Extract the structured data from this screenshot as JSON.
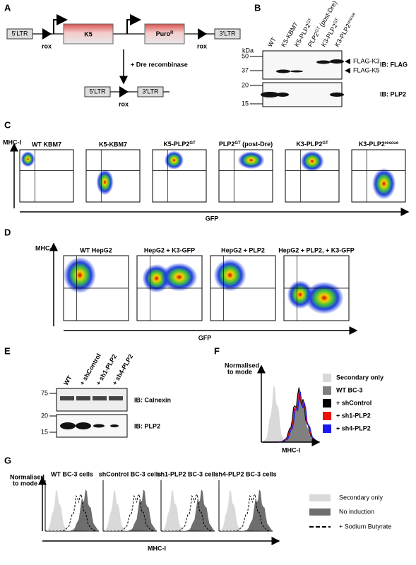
{
  "panels": {
    "A": {
      "label": "A",
      "ltr5": "5'LTR",
      "k5": "K5",
      "puro": "Puro",
      "puro_sup": "R",
      "rox": "rox",
      "ltr3": "3'LTR",
      "recombinase": "+ Dre recombinase"
    },
    "B": {
      "label": "B",
      "lanes": [
        "WT",
        "K5-KBM7",
        {
          "base": "K5-PLP2",
          "sup": "GT"
        },
        {
          "base": "PLP2",
          "sup": "GT",
          "suffix": " (post-Dre)"
        },
        {
          "base": "K3-PLP2",
          "sup": "GT"
        },
        {
          "base": "K3-PLP2",
          "sup": "rescue"
        }
      ],
      "unit": "kDa",
      "markers_top": [
        50,
        37
      ],
      "markers_bottom": [
        20,
        15
      ],
      "band_labels": [
        "FLAG-K3",
        "FLAG-K5"
      ],
      "ib_top": "IB: FLAG",
      "ib_bottom": "IB: PLP2"
    },
    "C": {
      "label": "C",
      "y_label": "MHC-I",
      "x_label": "GFP",
      "plots": [
        "WT KBM7",
        "K5-KBM7",
        {
          "base": "K5-PLP2",
          "sup": "GT"
        },
        {
          "base": "PLP2",
          "sup": "GT",
          "suffix": " (post-Dre)"
        },
        {
          "base": "K3-PLP2",
          "sup": "GT"
        },
        {
          "base": "K3-PLP2",
          "sup": "rescue"
        }
      ]
    },
    "D": {
      "label": "D",
      "y_label": "MHC-I",
      "x_label": "GFP",
      "plots": [
        "WT HepG2",
        "HepG2 + K3-GFP",
        "HepG2 + PLP2",
        "HepG2 + PLP2, + K3-GFP"
      ]
    },
    "E": {
      "label": "E",
      "lanes": [
        "WT",
        "+ shControl",
        "+ sh1-PLP2",
        "+ sh4-PLP2"
      ],
      "markers_top": [
        75
      ],
      "markers_bottom": [
        20,
        15
      ],
      "ib_top": "IB: Calnexin",
      "ib_bottom": "IB: PLP2"
    },
    "F": {
      "label": "F",
      "y_label": [
        "Normalised",
        "to mode"
      ],
      "x_label": "MHC-I",
      "legend": [
        {
          "name": "Secondary only",
          "color": "#d9d9d9"
        },
        {
          "name": "WT BC-3",
          "color": "#808080"
        },
        {
          "name": "+ shControl",
          "color": "#000000"
        },
        {
          "name": "+ sh1-PLP2",
          "color": "#e8120c"
        },
        {
          "name": "+ sh4-PLP2",
          "color": "#1a1aee"
        }
      ]
    },
    "G": {
      "label": "G",
      "y_label": [
        "Normalised",
        "to mode"
      ],
      "x_label": "MHC-I",
      "plots": [
        "WT BC-3 cells",
        "shControl BC-3 cells",
        "sh1-PLP2 BC-3 cells",
        "sh4-PLP2 BC-3 cells"
      ],
      "legend": [
        "Secondary only",
        "No induction",
        "+ Sodium Butyrate"
      ]
    }
  }
}
